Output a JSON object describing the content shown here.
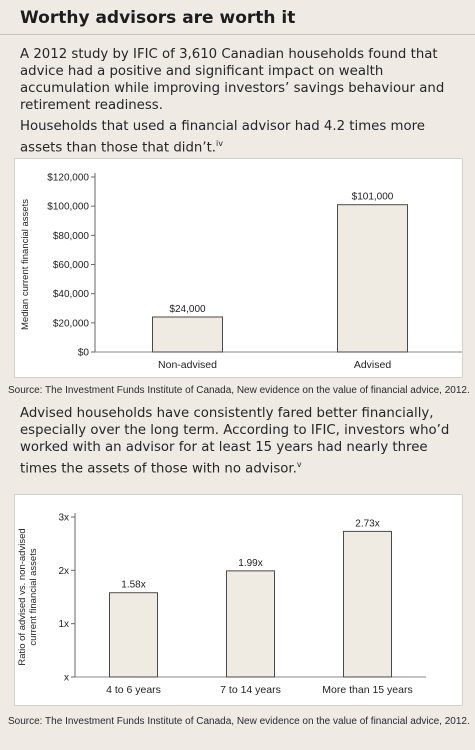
{
  "header": {
    "title": "Worthy advisors are worth it"
  },
  "intro": {
    "text": "A 2012 study by IFIC of 3,610 Canadian households found that advice had a positive and significant impact on wealth accumulation while improving investors’ savings behaviour and retirement readiness."
  },
  "chart1_caption": {
    "text": "Households that used a financial advisor had 4.2 times more assets than those that didn’t.",
    "sup": "iv"
  },
  "chart2_caption": {
    "text": "Advised households have consistently fared better financially, especially over the long term. According to IFIC, investors who’d worked with an advisor for at least 15 years had nearly three times the assets of those with no advisor.",
    "sup": "v"
  },
  "source1": "Source: The Investment Funds Institute of Canada, New evidence on the value of financial advice, 2012.",
  "source2": "Source: The Investment Funds Institute of Canada, New evidence on the value of financial advice, 2012.",
  "colors": {
    "bar_fill": "#efebe3",
    "bar_stroke": "#4a4a4a",
    "background": "#efeae4"
  },
  "chart_data": [
    {
      "type": "bar",
      "categories": [
        "Non-advised",
        "Advised"
      ],
      "values": [
        24000,
        101000
      ],
      "data_labels": [
        "$24,000",
        "$101,000"
      ],
      "ylabel": "Median current financial assets",
      "xlabel": "",
      "ylim": [
        0,
        120000
      ],
      "yticks": [
        0,
        20000,
        40000,
        60000,
        80000,
        100000,
        120000
      ],
      "ytick_labels": [
        "$0",
        "$20,000",
        "$40,000",
        "$60,000",
        "$80,000",
        "$100,000",
        "$120,000"
      ],
      "grid": false,
      "legend": "none"
    },
    {
      "type": "bar",
      "categories": [
        "4 to 6 years",
        "7 to 14 years",
        "More than 15 years"
      ],
      "values": [
        1.58,
        1.99,
        2.73
      ],
      "data_labels": [
        "1.58x",
        "1.99x",
        "2.73x"
      ],
      "ylabel": "Ratio of advised vs. non-advised current financial assets",
      "ylabel_lines": [
        "Ratio of advised vs. non-advised",
        "current financial assets"
      ],
      "xlabel": "",
      "ylim": [
        0,
        3
      ],
      "yticks": [
        0,
        1,
        2,
        3
      ],
      "ytick_labels": [
        "x",
        "1x",
        "2x",
        "3x"
      ],
      "grid": false,
      "legend": "none"
    }
  ]
}
